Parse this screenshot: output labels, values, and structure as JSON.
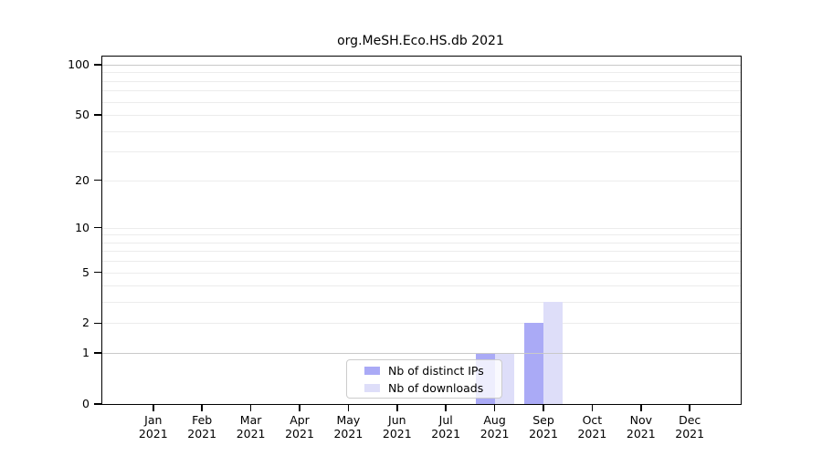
{
  "page": {
    "background": "#ffffff"
  },
  "chart_data": {
    "type": "bar",
    "title": "org.MeSH.Eco.HS.db 2021",
    "x_axis": {
      "months": [
        "Jan",
        "Feb",
        "Mar",
        "Apr",
        "May",
        "Jun",
        "Jul",
        "Aug",
        "Sep",
        "Oct",
        "Nov",
        "Dec"
      ],
      "year": "2021",
      "categories": [
        "Jan 2021",
        "Feb 2021",
        "Mar 2021",
        "Apr 2021",
        "May 2021",
        "Jun 2021",
        "Jul 2021",
        "Aug 2021",
        "Sep 2021",
        "Oct 2021",
        "Nov 2021",
        "Dec 2021"
      ]
    },
    "y_axis": {
      "scale": "log1p",
      "min": 0,
      "max": 100,
      "tick_values": [
        0,
        1,
        2,
        5,
        10,
        20,
        50,
        100
      ],
      "tick_labels": [
        "0",
        "1",
        "2",
        "5",
        "10",
        "20",
        "50",
        "100"
      ],
      "gridlines": {
        "minor": [
          2,
          3,
          4,
          5,
          6,
          7,
          8,
          9,
          10,
          20,
          30,
          40,
          50,
          60,
          70,
          80,
          90
        ],
        "major_below_bars": [
          100
        ],
        "major_above_bars": [
          1
        ]
      }
    },
    "series": [
      {
        "name": "Nb of distinct IPs",
        "color": "#aaaaf6",
        "values": [
          0,
          0,
          0,
          0,
          0,
          0,
          0,
          1,
          2,
          0,
          0,
          0
        ]
      },
      {
        "name": "Nb of downloads",
        "color": "#dedef9",
        "values": [
          0,
          0,
          0,
          0,
          0,
          0,
          0,
          1,
          3,
          0,
          0,
          0
        ]
      }
    ],
    "legend": {
      "position": "lower-center",
      "entries": [
        "Nb of distinct IPs",
        "Nb of downloads"
      ]
    },
    "style": {
      "grid_minor": "#ececec",
      "grid_major": "#c9c9c9",
      "axis": "#000000",
      "text": "#000000",
      "legend_border": "#cccccc",
      "legend_bg": "rgba(255,255,255,0.8)"
    }
  }
}
